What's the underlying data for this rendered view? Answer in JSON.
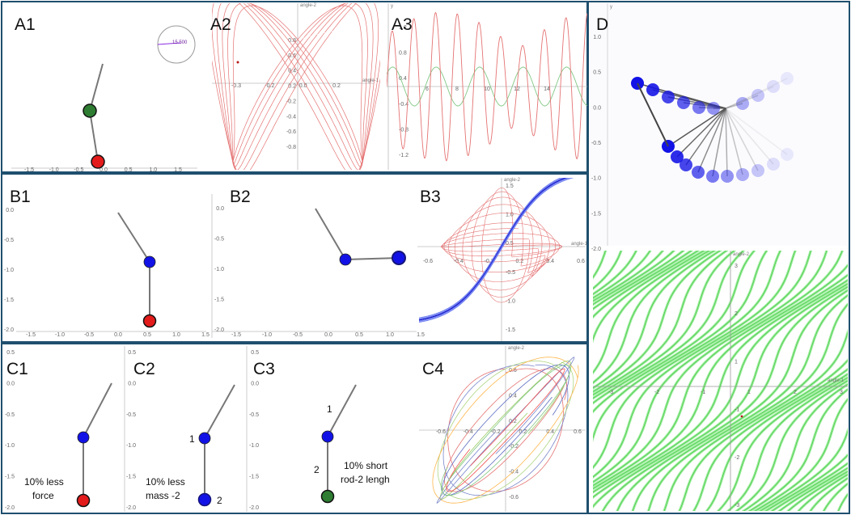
{
  "panels": {
    "A1": "A1",
    "A2": "A2",
    "A3": "A3",
    "B1": "B1",
    "B2": "B2",
    "B3": "B3",
    "C1": "C1",
    "C2": "C2",
    "C3": "C3",
    "C4": "C4",
    "D": "D"
  },
  "clock_value": "15.500",
  "annotations": {
    "c1_line1": "10% less",
    "c1_line2": "force",
    "c2_line1": "10% less",
    "c2_line2": "mass -2",
    "c2_label1": "1",
    "c2_label2": "2",
    "c3_label1": "1",
    "c3_label2": "2",
    "c3_line1": "10% short",
    "c3_line2": "rod-2 lengh"
  },
  "axis_titles": {
    "angle1": "angle-1",
    "angle2": "angle-2",
    "y": "y"
  },
  "ticks": {
    "a1_x": [
      "-1.5",
      "-1.0",
      "-0.5",
      "0.0",
      "0.5",
      "1.0",
      "1.5"
    ],
    "a2_x": [
      "-0.3",
      "-0.2",
      "0.0",
      "0.2"
    ],
    "a2_y": [
      "0.8",
      "0.6",
      "0.4",
      "0.2",
      "-0.2",
      "-0.4",
      "-0.6",
      "-0.8"
    ],
    "a3_x": [
      "6",
      "8",
      "10",
      "12",
      "14"
    ],
    "a3_y": [
      "1.2",
      "0.8",
      "0.4",
      "-0.4",
      "-0.8",
      "-1.2"
    ],
    "b1_x": [
      "-1.5",
      "-1.0",
      "-0.5",
      "0.0",
      "0.5",
      "1.0",
      "1.5"
    ],
    "b1_y": [
      "0.0",
      "-0.5",
      "-1.0",
      "-1.5",
      "-2.0"
    ],
    "b2_x": [
      "-1.5",
      "-1.0",
      "-0.5",
      "0.0",
      "0.5",
      "1.0",
      "1.5"
    ],
    "b2_y": [
      "0.0",
      "-0.5",
      "-1.0",
      "-1.5",
      "-2.0"
    ],
    "b3_x": [
      "-0.6",
      "-0.4",
      "-0.2",
      "0.2",
      "0.4",
      "0.6"
    ],
    "b3_y": [
      "1.5",
      "1.0",
      "0.5",
      "-0.5",
      "-1.0",
      "-1.5"
    ],
    "c_y": [
      "0.5",
      "0.0",
      "-0.5",
      "-1.0",
      "-1.5",
      "-2.0"
    ],
    "c4_x": [
      "-0.6",
      "-0.4",
      "-0.2",
      "0.2",
      "0.4",
      "0.6"
    ],
    "c4_y": [
      "0.6",
      "0.4",
      "0.2",
      "-0.2",
      "-0.4",
      "-0.6"
    ],
    "d_y": [
      "1.0",
      "0.5",
      "0.0",
      "-0.5",
      "-1.0",
      "-1.5",
      "-2.0"
    ],
    "d_x": [
      "-3",
      "-2",
      "-1",
      "1",
      "2",
      "3"
    ],
    "d_y2": [
      "3",
      "2",
      "1",
      "-1",
      "-2",
      "-3"
    ]
  },
  "colors": {
    "border": "#1f4f6e",
    "red": "#e31b1b",
    "green": "#2e7d32",
    "blue": "#1212e6",
    "navy": "#15157a",
    "trace_red": "#e57373",
    "trace_green": "#81c784",
    "streamline": "#4ee04e"
  }
}
